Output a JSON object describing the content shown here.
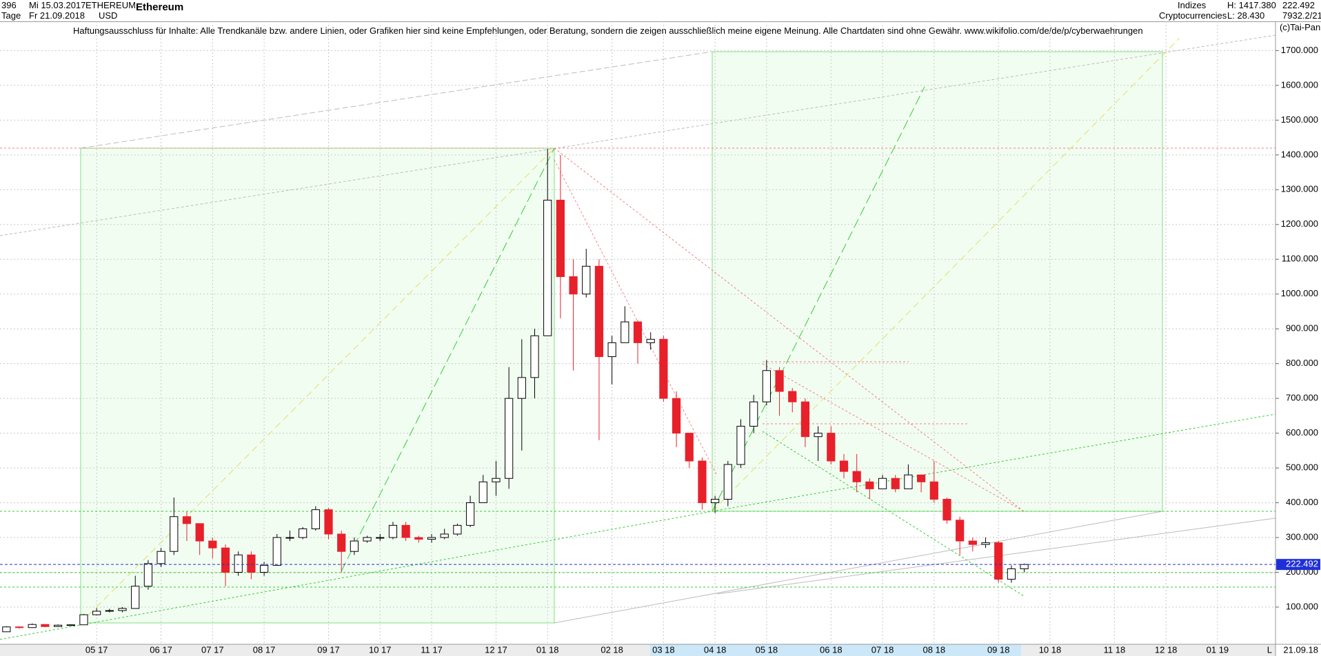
{
  "header": {
    "count": "396",
    "period": "Tage",
    "start_date": "Mi 15.03.2017",
    "end_date": "Fr 21.09.2018",
    "symbol": "ETHEREUM",
    "currency": "USD",
    "name": "Ethereum",
    "group": "Indizes",
    "subgroup": "Cryptocurrencies",
    "high": "H: 1417.380",
    "low": "L: 28.430",
    "ratio": "7932.2/21",
    "copyright": "(c)Tai-Pan",
    "disclaimer": "Haftungsausschluss für Inhalte: Alle Trendkanäle bzw. andere Linien, oder Grafiken hier sind keine Empfehlungen, oder Beratung, sondern die zeigen ausschließlich meine eigene Meinung. Alle Chartdaten sind ohne Gewähr.  www.wikifolio.com/de/de/p/cyberwaehrungen"
  },
  "footer": {
    "end_date": "21.09.18",
    "marker": "L"
  },
  "chart_data": {
    "type": "candlestick",
    "last_price": 222.492,
    "up_color": "#000000",
    "down_color": "#e8202a",
    "last_price_color": "#1f2fd8",
    "grid": true,
    "categories": [
      null,
      null,
      null,
      null,
      null,
      null,
      null,
      "05 17",
      null,
      null,
      null,
      null,
      "06 17",
      null,
      null,
      null,
      "07 17",
      null,
      null,
      null,
      "08 17",
      null,
      null,
      null,
      null,
      "09 17",
      null,
      null,
      null,
      "10 17",
      null,
      null,
      null,
      "11 17",
      null,
      null,
      null,
      null,
      "12 17",
      null,
      null,
      null,
      "01 18",
      null,
      null,
      null,
      null,
      "02 18",
      null,
      null,
      null,
      "03 18",
      null,
      null,
      null,
      "04 18",
      null,
      null,
      null,
      "05 18",
      null,
      null,
      null,
      null,
      "06 18",
      null,
      null,
      null,
      "07 18",
      null,
      null,
      null,
      "08 18",
      null,
      null,
      null,
      null,
      "09 18",
      null,
      null,
      null,
      "10 18",
      null,
      null,
      null,
      null,
      "11 18",
      null,
      null,
      null,
      "12 18",
      null,
      null,
      null,
      "01 19",
      null,
      null,
      null,
      null
    ],
    "open": [
      29,
      43,
      41,
      50,
      44,
      48,
      49,
      78,
      88,
      90,
      96,
      160,
      225,
      260,
      360,
      340,
      290,
      270,
      200,
      250,
      200,
      220,
      300,
      300,
      325,
      380,
      310,
      260,
      290,
      300,
      300,
      335,
      300,
      295,
      300,
      310,
      335,
      400,
      460,
      470,
      700,
      760,
      880,
      1270,
      1050,
      1000,
      1080,
      820,
      860,
      920,
      860,
      870,
      700,
      600,
      520,
      400,
      410,
      510,
      620,
      690,
      780,
      720,
      690,
      590,
      600,
      520,
      490,
      460,
      440,
      470,
      440,
      480,
      460,
      410,
      350,
      290,
      280,
      285,
      180,
      210,
      null,
      null,
      null,
      null,
      null,
      null,
      null,
      null,
      null,
      null,
      null,
      null,
      null,
      null,
      null,
      null,
      null,
      null,
      null
    ],
    "high": [
      45,
      45,
      53,
      51,
      50,
      50,
      80,
      97,
      95,
      100,
      190,
      235,
      270,
      415,
      375,
      340,
      300,
      280,
      260,
      260,
      230,
      310,
      320,
      330,
      390,
      385,
      320,
      300,
      305,
      310,
      345,
      345,
      305,
      310,
      325,
      340,
      420,
      480,
      520,
      790,
      870,
      900,
      1417.38,
      1400,
      1100,
      1130,
      1100,
      880,
      965,
      925,
      890,
      880,
      720,
      600,
      530,
      420,
      520,
      640,
      710,
      810,
      790,
      730,
      700,
      620,
      620,
      540,
      540,
      470,
      480,
      480,
      510,
      480,
      520,
      415,
      360,
      300,
      300,
      290,
      220,
      225,
      null,
      null,
      null,
      null,
      null,
      null,
      null,
      null,
      null,
      null,
      null,
      null,
      null,
      null,
      null,
      null,
      null,
      null,
      null
    ],
    "low": [
      28.43,
      38,
      40,
      42,
      43,
      47,
      49,
      76,
      85,
      85,
      96,
      150,
      215,
      250,
      290,
      250,
      240,
      160,
      190,
      180,
      190,
      220,
      290,
      295,
      320,
      295,
      200,
      250,
      285,
      290,
      295,
      290,
      285,
      285,
      295,
      305,
      330,
      400,
      420,
      440,
      550,
      700,
      880,
      930,
      780,
      990,
      580,
      740,
      860,
      800,
      840,
      690,
      560,
      500,
      380,
      370,
      390,
      500,
      600,
      680,
      650,
      660,
      560,
      520,
      510,
      470,
      430,
      410,
      440,
      430,
      440,
      430,
      400,
      340,
      250,
      260,
      270,
      170,
      170,
      200,
      null,
      null,
      null,
      null,
      null,
      null,
      null,
      null,
      null,
      null,
      null,
      null,
      null,
      null,
      null,
      null,
      null,
      null,
      null
    ],
    "close": [
      43,
      41,
      50,
      44,
      48,
      49,
      78,
      88,
      90,
      96,
      160,
      225,
      260,
      360,
      340,
      290,
      270,
      200,
      250,
      200,
      220,
      300,
      300,
      325,
      380,
      310,
      260,
      290,
      300,
      300,
      335,
      300,
      295,
      300,
      310,
      335,
      400,
      460,
      470,
      700,
      760,
      880,
      1270,
      1050,
      1000,
      1080,
      820,
      860,
      920,
      860,
      870,
      700,
      600,
      520,
      400,
      410,
      510,
      620,
      690,
      780,
      720,
      690,
      590,
      600,
      520,
      490,
      460,
      440,
      470,
      440,
      480,
      460,
      410,
      350,
      290,
      280,
      285,
      180,
      210,
      222.492,
      null,
      null,
      null,
      null,
      null,
      null,
      null,
      null,
      null,
      null,
      null,
      null,
      null,
      null,
      null,
      null,
      null,
      null,
      null
    ],
    "ylim": [
      -7,
      1784
    ],
    "yticks": [
      {
        "value": 100,
        "label": "100.000"
      },
      {
        "value": 200,
        "label": "200.000"
      },
      {
        "value": 300,
        "label": "300.000"
      },
      {
        "value": 400,
        "label": "400.000"
      },
      {
        "value": 500,
        "label": "500.000"
      },
      {
        "value": 600,
        "label": "600.000"
      },
      {
        "value": 700,
        "label": "700.000"
      },
      {
        "value": 800,
        "label": "800.000"
      },
      {
        "value": 900,
        "label": "900.000"
      },
      {
        "value": 1000,
        "label": "1000.000"
      },
      {
        "value": 1100,
        "label": "1100.000"
      },
      {
        "value": 1200,
        "label": "1200.000"
      },
      {
        "value": 1300,
        "label": "1300.000"
      },
      {
        "value": 1400,
        "label": "1400.000"
      },
      {
        "value": 1500,
        "label": "1500.000"
      },
      {
        "value": 1600,
        "label": "1600.000"
      },
      {
        "value": 1700,
        "label": "1700.000"
      }
    ]
  }
}
